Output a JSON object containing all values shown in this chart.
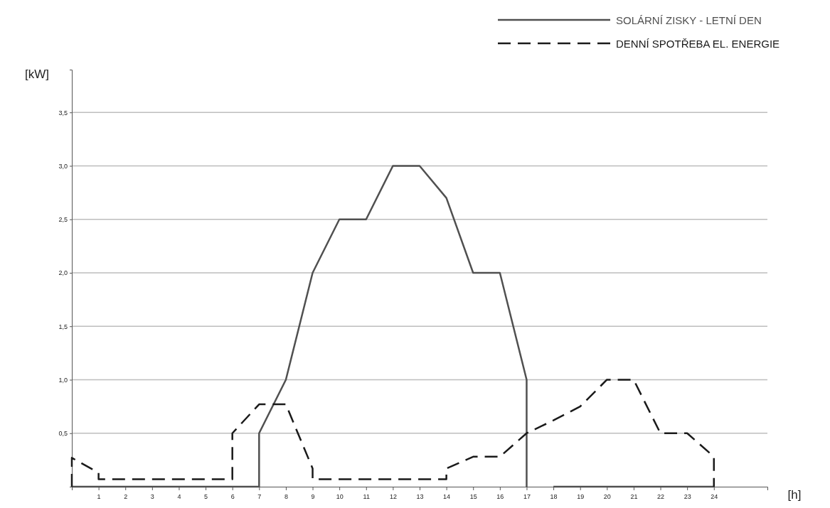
{
  "chart_data": {
    "type": "line",
    "xlabel": "[h]",
    "ylabel": "[kW]",
    "xlim": [
      0,
      26
    ],
    "ylim": [
      0,
      3.9
    ],
    "xticks": [
      1,
      2,
      3,
      4,
      5,
      6,
      7,
      8,
      9,
      10,
      11,
      12,
      13,
      14,
      15,
      16,
      17,
      18,
      19,
      20,
      21,
      22,
      23,
      24
    ],
    "yticks": [
      {
        "value": 0.5,
        "label": "0,5"
      },
      {
        "value": 1,
        "label": "1,0"
      },
      {
        "value": 1.5,
        "label": "1,5"
      },
      {
        "value": 2,
        "label": "2,0"
      },
      {
        "value": 2.5,
        "label": "2,5"
      },
      {
        "value": 3,
        "label": "3,0"
      },
      {
        "value": 3.5,
        "label": "3,5"
      }
    ],
    "grid": "y",
    "legend": "top right",
    "marker": "none",
    "series": [
      {
        "name": "SOLÁRNÍ ZISKY - LETNÍ DEN",
        "color": "#505050",
        "line_style": "solid",
        "x": [
          0,
          7,
          7,
          8,
          9,
          10,
          11,
          12,
          13,
          14,
          15,
          16,
          17,
          17,
          17.5,
          18,
          24
        ],
        "values": [
          0,
          0,
          0.5,
          1,
          2,
          2.5,
          2.5,
          3,
          3,
          2.7,
          2,
          2,
          1,
          0,
          null,
          0,
          0
        ]
      },
      {
        "name": "DENNÍ SPOTŘEBA EL. ENERGIE",
        "color": "#1a1a1a",
        "line_style": "dashed",
        "x": [
          0,
          0,
          1,
          1,
          6,
          6,
          7,
          8,
          9,
          9,
          14,
          14,
          15,
          16,
          17,
          18,
          19,
          20,
          21,
          22,
          23,
          24,
          24
        ],
        "values": [
          0,
          0.27,
          0.13,
          0.07,
          0.07,
          0.5,
          0.77,
          0.77,
          0.17,
          0.07,
          0.07,
          0.17,
          0.28,
          0.28,
          0.5,
          0.62,
          0.75,
          1,
          1,
          0.5,
          0.5,
          0.28,
          0
        ]
      }
    ]
  }
}
